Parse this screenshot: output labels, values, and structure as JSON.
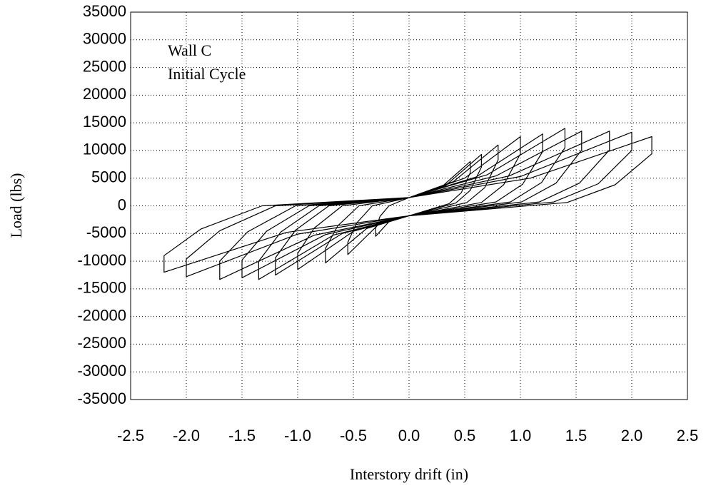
{
  "chart_data": {
    "type": "line",
    "xlabel": "Interstory drift (in)",
    "ylabel": "Load (lbs)",
    "annotations": [
      "Wall C",
      "Initial Cycle"
    ],
    "color": "#000000",
    "grid": true,
    "xlim": [
      -2.5,
      2.5
    ],
    "ylim": [
      -35000,
      35000
    ],
    "xticks": [
      -2.5,
      {
        "value": -2,
        "label": "-2.0"
      },
      -1.5,
      {
        "value": -1,
        "label": "-1.0"
      },
      -0.5,
      {
        "value": 0,
        "label": "0.0"
      },
      0.5,
      {
        "value": 1,
        "label": "1.0"
      },
      1.5,
      {
        "value": 2,
        "label": "2.0"
      },
      2.5
    ],
    "yticks": [
      35000,
      30000,
      25000,
      20000,
      15000,
      10000,
      5000,
      0,
      -5000,
      -10000,
      -15000,
      -20000,
      -25000,
      -30000,
      -35000
    ],
    "x": [
      0,
      0.28,
      0.55,
      0.55,
      0.47,
      0.36,
      0,
      -0.15,
      -0.3,
      -0.3,
      -0.26,
      -0.18,
      0,
      0.33,
      0.65,
      0.65,
      0.55,
      0.42,
      0,
      -0.28,
      -0.55,
      -0.55,
      -0.47,
      -0.33,
      0,
      0.4,
      0.8,
      0.8,
      0.68,
      0.52,
      0,
      -0.38,
      -0.75,
      -0.75,
      -0.64,
      -0.45,
      0,
      0.5,
      1.0,
      1.0,
      0.85,
      0.65,
      0,
      -0.5,
      -1.0,
      -1.0,
      -0.85,
      -0.6,
      0,
      0.6,
      1.2,
      1.2,
      1.02,
      0.78,
      0,
      -0.6,
      -1.2,
      -1.2,
      -1.02,
      -0.72,
      0,
      0.7,
      1.4,
      1.4,
      1.19,
      0.91,
      0,
      -0.68,
      -1.35,
      -1.35,
      -1.15,
      -0.81,
      0,
      0.78,
      1.55,
      1.55,
      1.32,
      1.01,
      0,
      -0.75,
      -1.5,
      -1.5,
      -1.28,
      -0.9,
      0,
      0.9,
      1.8,
      1.8,
      1.53,
      1.17,
      0,
      -0.85,
      -1.7,
      -1.7,
      -1.45,
      -1.02,
      0,
      1.0,
      2.0,
      2.0,
      1.7,
      1.3,
      0,
      -1.0,
      -2.0,
      -2.0,
      -1.7,
      -1.2,
      0,
      1.09,
      2.18,
      2.18,
      1.85,
      1.42,
      0,
      -1.1,
      -2.2,
      -2.2,
      -1.87,
      -1.32,
      0
    ],
    "values": [
      1500,
      3200,
      8000,
      6000,
      2400,
      400,
      -1800,
      -2200,
      -5500,
      -4100,
      -1900,
      0,
      1500,
      3700,
      9300,
      7000,
      2800,
      500,
      -1800,
      -3500,
      -8800,
      -6600,
      -3100,
      0,
      1500,
      4400,
      11000,
      8300,
      3300,
      600,
      -1800,
      -4100,
      -10300,
      -7700,
      -3600,
      0,
      1500,
      5000,
      12500,
      9400,
      3800,
      600,
      -1800,
      -4600,
      -11500,
      -8600,
      -4000,
      0,
      1500,
      5200,
      13000,
      9800,
      3900,
      700,
      -1800,
      -5000,
      -12500,
      -9400,
      -4400,
      0,
      1500,
      5600,
      14000,
      10500,
      4200,
      700,
      -1800,
      -5300,
      -13300,
      -10000,
      -4700,
      0,
      1500,
      5400,
      13500,
      10100,
      4100,
      700,
      -1800,
      -5200,
      -13000,
      -9800,
      -4600,
      0,
      1500,
      5400,
      13500,
      10100,
      4100,
      700,
      -1800,
      -5300,
      -13300,
      -10000,
      -4700,
      0,
      1500,
      5300,
      13300,
      10000,
      4000,
      700,
      -1800,
      -5100,
      -12800,
      -9600,
      -4500,
      0,
      1500,
      5000,
      12500,
      9400,
      3800,
      600,
      -1800,
      -4800,
      -12000,
      -9000,
      -4200,
      0,
      1500
    ]
  }
}
